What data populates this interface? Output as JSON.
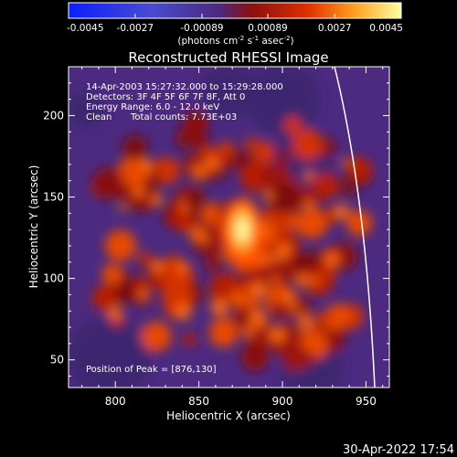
{
  "chart_data": {
    "type": "heatmap",
    "title": "Reconstructed RHESSI Image",
    "xlabel": "Heliocentric X (arcsec)",
    "ylabel": "Heliocentric Y (arcsec)",
    "xlim": [
      772,
      964
    ],
    "ylim": [
      33,
      230
    ],
    "xticks": [
      800,
      850,
      900,
      950
    ],
    "yticks": [
      50,
      100,
      150,
      200
    ],
    "colorbar": {
      "ticks": [
        "-0.0045",
        "-0.0027",
        "-0.00089",
        "0.00089",
        "0.0027",
        "0.0045"
      ],
      "range": [
        -0.0045,
        0.0045
      ],
      "unit_main": "(photons cm",
      "unit_exp1": "-2",
      "unit_mid": " s",
      "unit_exp2": "-1",
      "unit_end": " asec",
      "unit_exp3": "-2",
      "unit_close": ")"
    },
    "info": {
      "time_range": "14-Apr-2003 15:27:32.000 to 15:29:28.000",
      "detectors": "Detectors: 3F 4F 5F 6F 7F 8F, Att 0",
      "energy_range": "Energy Range: 6.0 - 12.0 keV",
      "clean": "Clean",
      "total_counts": "Total counts: 7.73E+03",
      "peak": "Position of Peak = [876,130]"
    },
    "peak": {
      "x": 876,
      "y": 130
    },
    "footer_date": "30-Apr-2022 17:54",
    "colors": {
      "low": "#0b1fff",
      "mid_low": "#4b2a80",
      "mid": "#8b1010",
      "mid_high": "#ff5a00",
      "high": "#ffffa0"
    }
  }
}
